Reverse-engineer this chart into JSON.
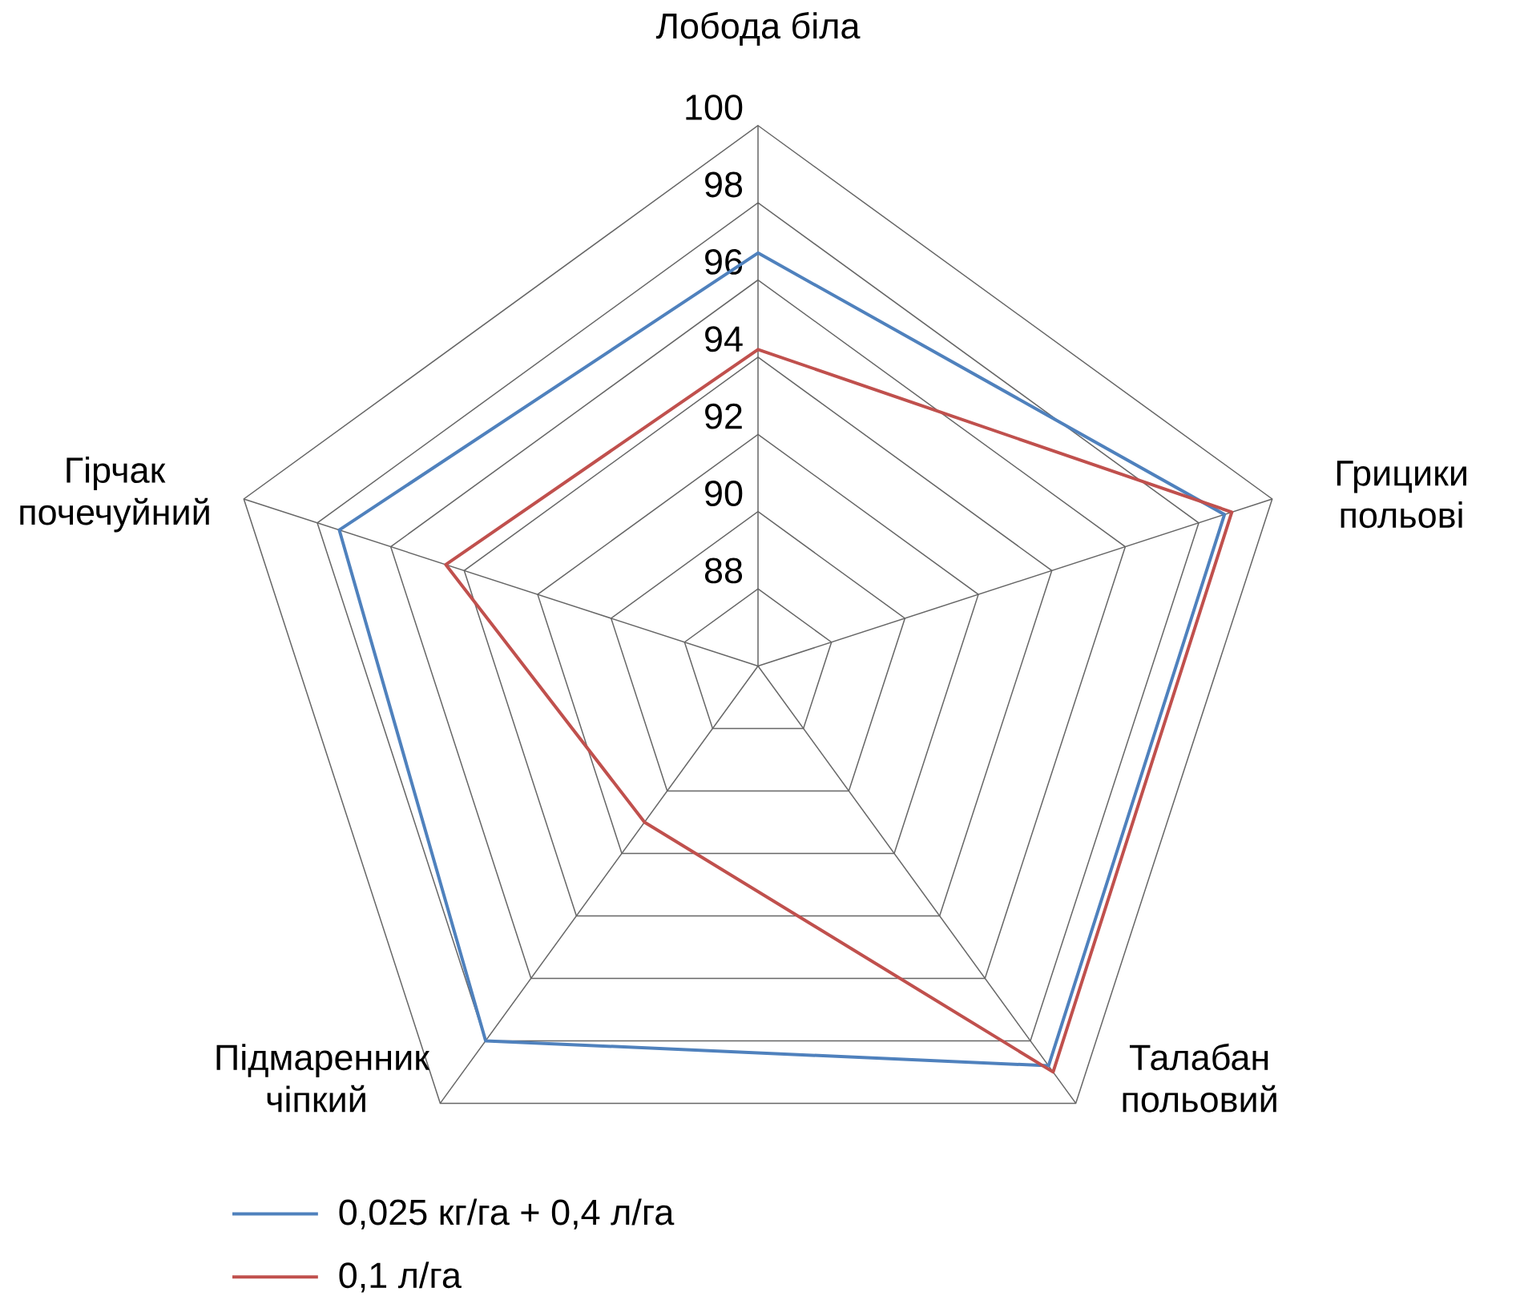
{
  "chart_data": {
    "type": "radar",
    "categories": [
      "Лобода біла",
      "Грицики польові",
      "Талабан польовий",
      "Підмаренник чіпкий",
      "Гірчак почечуйний"
    ],
    "series": [
      {
        "name": "0,025 кг/га + 0,4 л/га",
        "color": "#4f81bd",
        "values": [
          96.7,
          98.7,
          98.8,
          98.0,
          97.4
        ]
      },
      {
        "name": "0,1 л/га",
        "color": "#c0504d",
        "values": [
          94.2,
          98.9,
          99.0,
          91.0,
          94.5
        ]
      }
    ],
    "ylim": [
      86,
      100
    ],
    "yticks": [
      88,
      90,
      92,
      94,
      96,
      98,
      100
    ],
    "grid": true,
    "legend": "bottom",
    "line_style": "solid",
    "marker": "none"
  }
}
